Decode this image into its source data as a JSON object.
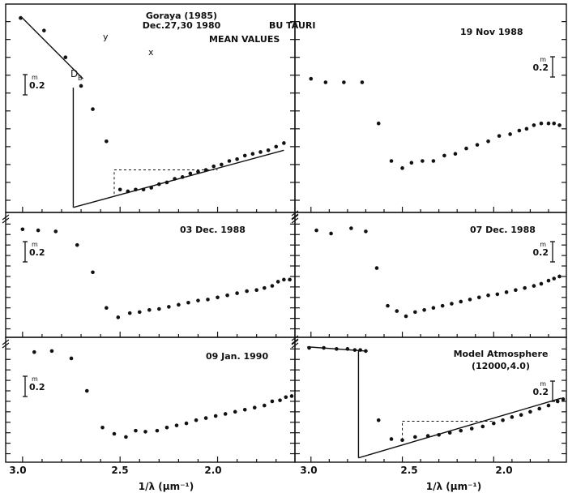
{
  "figure_title": "BU TAURI",
  "xlabel": "1/λ (μm⁻¹)",
  "x_ticks": [
    "3.0",
    "2.5",
    "2.0"
  ],
  "scale_bar": {
    "sup": "m",
    "value": "0.2"
  },
  "annotations": {
    "db": "D",
    "db_sub": "B",
    "x_mark": "x",
    "y_mark": "y"
  },
  "chart_data": [
    {
      "type": "scatter",
      "title": "Goraya (1985) Dec.27,30 1980",
      "title_lines": [
        "Goraya (1985)",
        "Dec.27,30 1980"
      ],
      "note": "MEAN VALUES",
      "xlabel": "1/λ (μm⁻¹)",
      "xlim": [
        3.07,
        1.62
      ],
      "ylim_magnitudes": [
        1.13,
        0.0
      ],
      "series": [
        {
          "points": [
            [
              3.01,
              1.07
            ],
            [
              2.89,
              1.0
            ],
            [
              2.78,
              0.85
            ],
            [
              2.7,
              0.69
            ],
            [
              2.64,
              0.56
            ],
            [
              2.57,
              0.38
            ],
            [
              2.5,
              0.11
            ],
            [
              2.46,
              0.1
            ],
            [
              2.42,
              0.11
            ],
            [
              2.38,
              0.11
            ],
            [
              2.34,
              0.12
            ],
            [
              2.3,
              0.14
            ],
            [
              2.26,
              0.15
            ],
            [
              2.22,
              0.17
            ],
            [
              2.18,
              0.18
            ],
            [
              2.14,
              0.2
            ],
            [
              2.1,
              0.21
            ],
            [
              2.06,
              0.22
            ],
            [
              2.02,
              0.24
            ],
            [
              1.98,
              0.25
            ],
            [
              1.94,
              0.27
            ],
            [
              1.9,
              0.28
            ],
            [
              1.86,
              0.3
            ],
            [
              1.82,
              0.31
            ],
            [
              1.78,
              0.32
            ],
            [
              1.74,
              0.33
            ],
            [
              1.7,
              0.35
            ],
            [
              1.66,
              0.37
            ]
          ]
        }
      ]
    },
    {
      "type": "scatter",
      "title": "19 Nov 1988",
      "xlim": [
        3.07,
        1.62
      ],
      "ylim_magnitudes": [
        1.13,
        0.0
      ],
      "series": [
        {
          "points": [
            [
              3.0,
              0.73
            ],
            [
              2.92,
              0.71
            ],
            [
              2.82,
              0.71
            ],
            [
              2.72,
              0.71
            ],
            [
              2.63,
              0.48
            ],
            [
              2.56,
              0.27
            ],
            [
              2.5,
              0.23
            ],
            [
              2.45,
              0.26
            ],
            [
              2.39,
              0.27
            ],
            [
              2.33,
              0.27
            ],
            [
              2.27,
              0.3
            ],
            [
              2.21,
              0.31
            ],
            [
              2.15,
              0.34
            ],
            [
              2.09,
              0.36
            ],
            [
              2.03,
              0.38
            ],
            [
              1.97,
              0.41
            ],
            [
              1.91,
              0.42
            ],
            [
              1.86,
              0.44
            ],
            [
              1.82,
              0.45
            ],
            [
              1.78,
              0.47
            ],
            [
              1.74,
              0.48
            ],
            [
              1.7,
              0.48
            ],
            [
              1.67,
              0.48
            ],
            [
              1.64,
              0.47
            ]
          ]
        }
      ]
    },
    {
      "type": "scatter",
      "title": "03 Dec. 1988",
      "xlim": [
        3.07,
        1.62
      ],
      "ylim_magnitudes": [
        1.13,
        0.0
      ],
      "series": [
        {
          "points": [
            [
              3.0,
              1.0
            ],
            [
              2.92,
              0.99
            ],
            [
              2.83,
              0.98
            ],
            [
              2.72,
              0.85
            ],
            [
              2.64,
              0.59
            ],
            [
              2.57,
              0.25
            ],
            [
              2.51,
              0.16
            ],
            [
              2.45,
              0.2
            ],
            [
              2.4,
              0.21
            ],
            [
              2.35,
              0.23
            ],
            [
              2.3,
              0.24
            ],
            [
              2.25,
              0.26
            ],
            [
              2.2,
              0.28
            ],
            [
              2.15,
              0.3
            ],
            [
              2.1,
              0.32
            ],
            [
              2.05,
              0.33
            ],
            [
              2.0,
              0.35
            ],
            [
              1.95,
              0.37
            ],
            [
              1.9,
              0.39
            ],
            [
              1.85,
              0.41
            ],
            [
              1.8,
              0.42
            ],
            [
              1.76,
              0.44
            ],
            [
              1.72,
              0.46
            ],
            [
              1.69,
              0.5
            ],
            [
              1.66,
              0.52
            ],
            [
              1.63,
              0.52
            ]
          ]
        }
      ]
    },
    {
      "type": "scatter",
      "title": "07 Dec. 1988",
      "xlim": [
        3.07,
        1.62
      ],
      "ylim_magnitudes": [
        1.13,
        0.0
      ],
      "series": [
        {
          "points": [
            [
              2.97,
              0.99
            ],
            [
              2.89,
              0.96
            ],
            [
              2.78,
              1.01
            ],
            [
              2.7,
              0.98
            ],
            [
              2.64,
              0.63
            ],
            [
              2.58,
              0.27
            ],
            [
              2.53,
              0.22
            ],
            [
              2.48,
              0.17
            ],
            [
              2.43,
              0.21
            ],
            [
              2.38,
              0.23
            ],
            [
              2.33,
              0.25
            ],
            [
              2.28,
              0.27
            ],
            [
              2.23,
              0.29
            ],
            [
              2.18,
              0.31
            ],
            [
              2.13,
              0.33
            ],
            [
              2.08,
              0.35
            ],
            [
              2.03,
              0.37
            ],
            [
              1.98,
              0.38
            ],
            [
              1.93,
              0.4
            ],
            [
              1.88,
              0.42
            ],
            [
              1.83,
              0.44
            ],
            [
              1.78,
              0.46
            ],
            [
              1.74,
              0.48
            ],
            [
              1.7,
              0.51
            ],
            [
              1.67,
              0.53
            ],
            [
              1.64,
              0.55
            ]
          ]
        }
      ]
    },
    {
      "type": "scatter",
      "title": "09 Jan. 1990",
      "xlim": [
        3.07,
        1.62
      ],
      "ylim_magnitudes": [
        1.13,
        0.0
      ],
      "series": [
        {
          "points": [
            [
              2.94,
              1.02
            ],
            [
              2.85,
              1.03
            ],
            [
              2.75,
              0.96
            ],
            [
              2.67,
              0.65
            ],
            [
              2.59,
              0.3
            ],
            [
              2.53,
              0.24
            ],
            [
              2.47,
              0.21
            ],
            [
              2.42,
              0.27
            ],
            [
              2.37,
              0.26
            ],
            [
              2.31,
              0.27
            ],
            [
              2.26,
              0.3
            ],
            [
              2.21,
              0.32
            ],
            [
              2.16,
              0.34
            ],
            [
              2.11,
              0.37
            ],
            [
              2.06,
              0.39
            ],
            [
              2.01,
              0.41
            ],
            [
              1.96,
              0.43
            ],
            [
              1.91,
              0.45
            ],
            [
              1.86,
              0.47
            ],
            [
              1.81,
              0.49
            ],
            [
              1.76,
              0.51
            ],
            [
              1.72,
              0.55
            ],
            [
              1.68,
              0.56
            ],
            [
              1.65,
              0.59
            ],
            [
              1.62,
              0.6
            ]
          ]
        }
      ]
    },
    {
      "type": "scatter",
      "title": "Model Atmosphere (12000,4.0)",
      "title_lines": [
        "Model Atmosphere",
        "(12000,4.0)"
      ],
      "xlim": [
        3.07,
        1.62
      ],
      "ylim_magnitudes": [
        1.13,
        0.0
      ],
      "series": [
        {
          "points": [
            [
              3.01,
              1.06
            ],
            [
              2.93,
              1.06
            ],
            [
              2.86,
              1.05
            ],
            [
              2.8,
              1.05
            ],
            [
              2.76,
              1.04
            ],
            [
              2.73,
              1.04
            ],
            [
              2.7,
              1.03
            ],
            [
              2.63,
              0.37
            ],
            [
              2.56,
              0.19
            ],
            [
              2.5,
              0.18
            ],
            [
              2.43,
              0.21
            ],
            [
              2.36,
              0.22
            ],
            [
              2.3,
              0.23
            ],
            [
              2.24,
              0.25
            ],
            [
              2.18,
              0.27
            ],
            [
              2.12,
              0.29
            ],
            [
              2.06,
              0.31
            ],
            [
              2.0,
              0.34
            ],
            [
              1.95,
              0.37
            ],
            [
              1.9,
              0.4
            ],
            [
              1.85,
              0.42
            ],
            [
              1.8,
              0.45
            ],
            [
              1.75,
              0.48
            ],
            [
              1.7,
              0.51
            ],
            [
              1.65,
              0.55
            ],
            [
              1.62,
              0.57
            ]
          ]
        }
      ]
    }
  ]
}
